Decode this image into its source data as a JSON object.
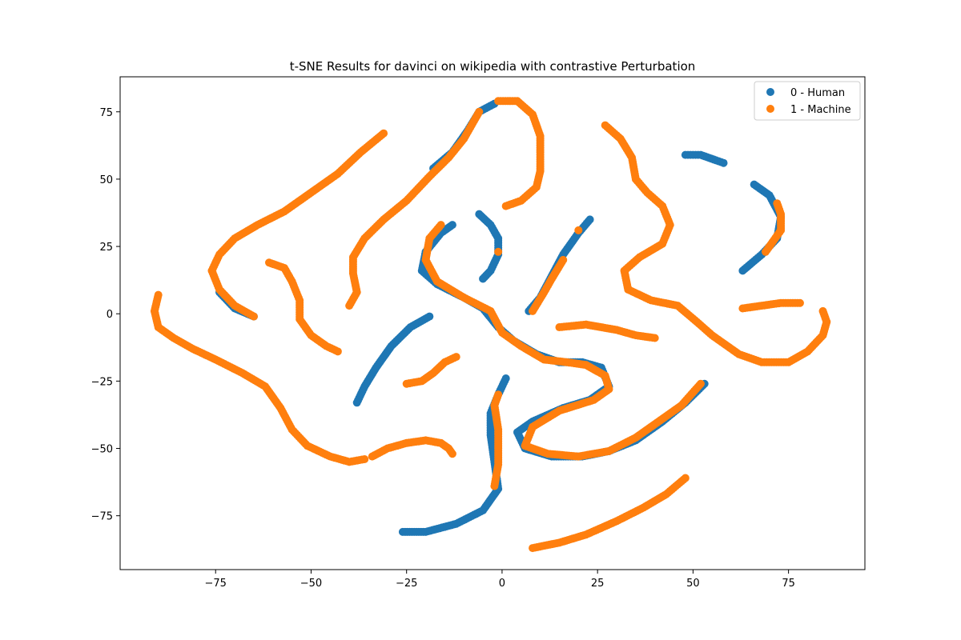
{
  "chart_data": {
    "type": "scatter",
    "title": "t-SNE Results for davinci on wikipedia with contrastive Perturbation",
    "xlabel": "",
    "ylabel": "",
    "xlim": [
      -100,
      95
    ],
    "ylim": [
      -95,
      88
    ],
    "xticks": [
      -75,
      -50,
      -25,
      0,
      25,
      50,
      75
    ],
    "yticks": [
      -75,
      -50,
      -25,
      0,
      25,
      50,
      75
    ],
    "xtick_labels": [
      "−75",
      "−50",
      "−25",
      "0",
      "25",
      "50",
      "75"
    ],
    "ytick_labels": [
      "−75",
      "−50",
      "−25",
      "0",
      "25",
      "50",
      "75"
    ],
    "grid": false,
    "legend_position": "top-right",
    "series": [
      {
        "name": "0 - Human",
        "color": "#1f77b4",
        "curves": [
          [
            [
              -65,
              -1
            ],
            [
              -70,
              2
            ],
            [
              -74,
              8
            ]
          ],
          [
            [
              48,
              59
            ],
            [
              52,
              59
            ],
            [
              56,
              57
            ],
            [
              58,
              56
            ]
          ],
          [
            [
              66,
              48
            ],
            [
              70,
              44
            ],
            [
              73,
              36
            ],
            [
              72,
              28
            ],
            [
              68,
              22
            ],
            [
              63,
              16
            ]
          ],
          [
            [
              -6,
              37
            ],
            [
              -3,
              33
            ],
            [
              -1,
              28
            ],
            [
              -1,
              22
            ],
            [
              -3,
              16
            ],
            [
              -5,
              13
            ]
          ],
          [
            [
              23,
              35
            ],
            [
              20,
              30
            ],
            [
              16,
              22
            ],
            [
              13,
              14
            ],
            [
              10,
              6
            ],
            [
              7,
              1
            ]
          ],
          [
            [
              -19,
              -1
            ],
            [
              -24,
              -5
            ],
            [
              -29,
              -12
            ],
            [
              -33,
              -20
            ],
            [
              -36,
              -27
            ],
            [
              -38,
              -33
            ]
          ],
          [
            [
              -26,
              -81
            ],
            [
              -20,
              -81
            ],
            [
              -12,
              -78
            ],
            [
              -5,
              -73
            ],
            [
              -1,
              -65
            ],
            [
              -2,
              -55
            ],
            [
              -3,
              -45
            ],
            [
              -3,
              -37
            ],
            [
              -1,
              -30
            ],
            [
              1,
              -24
            ]
          ],
          [
            [
              -13,
              33
            ],
            [
              -16,
              30
            ],
            [
              -20,
              23
            ],
            [
              -21,
              16
            ],
            [
              -17,
              11
            ],
            [
              -10,
              6
            ],
            [
              -5,
              2
            ],
            [
              -1,
              -5
            ],
            [
              3,
              -10
            ],
            [
              9,
              -15
            ],
            [
              15,
              -18
            ],
            [
              21,
              -18
            ],
            [
              26,
              -20
            ],
            [
              28,
              -27
            ],
            [
              23,
              -32
            ],
            [
              16,
              -35
            ],
            [
              8,
              -40
            ],
            [
              4,
              -44
            ],
            [
              6,
              -50
            ],
            [
              13,
              -53
            ],
            [
              21,
              -53
            ],
            [
              28,
              -51
            ],
            [
              35,
              -47
            ],
            [
              42,
              -40
            ],
            [
              48,
              -33
            ],
            [
              53,
              -26
            ]
          ],
          [
            [
              -18,
              54
            ],
            [
              -13,
              60
            ],
            [
              -9,
              68
            ],
            [
              -6,
              75
            ],
            [
              -2,
              78
            ]
          ]
        ]
      },
      {
        "name": "1 - Machine",
        "color": "#ff7f0e",
        "curves": [
          [
            [
              -65,
              -1
            ],
            [
              -70,
              3
            ],
            [
              -74,
              9
            ],
            [
              -76,
              16
            ],
            [
              -74,
              22
            ],
            [
              -70,
              28
            ],
            [
              -64,
              33
            ],
            [
              -57,
              38
            ],
            [
              -50,
              45
            ],
            [
              -43,
              52
            ],
            [
              -37,
              60
            ],
            [
              -31,
              67
            ]
          ],
          [
            [
              -90,
              7
            ],
            [
              -91,
              1
            ],
            [
              -90,
              -5
            ],
            [
              -86,
              -9
            ],
            [
              -81,
              -13
            ],
            [
              -75,
              -17
            ],
            [
              -68,
              -22
            ],
            [
              -62,
              -27
            ],
            [
              -58,
              -35
            ],
            [
              -55,
              -43
            ],
            [
              -51,
              -49
            ],
            [
              -45,
              -53
            ],
            [
              -40,
              -55
            ],
            [
              -36,
              -54
            ]
          ],
          [
            [
              -61,
              19
            ],
            [
              -57,
              17
            ],
            [
              -55,
              12
            ],
            [
              -53,
              5
            ],
            [
              -53,
              -2
            ],
            [
              -50,
              -8
            ],
            [
              -46,
              -12
            ],
            [
              -43,
              -14
            ]
          ],
          [
            [
              -40,
              3
            ],
            [
              -38,
              8
            ],
            [
              -39,
              15
            ],
            [
              -39,
              21
            ],
            [
              -36,
              28
            ],
            [
              -31,
              35
            ],
            [
              -25,
              42
            ],
            [
              -19,
              51
            ],
            [
              -14,
              58
            ],
            [
              -10,
              65
            ],
            [
              -8,
              70
            ],
            [
              -6,
              75
            ]
          ],
          [
            [
              -1,
              79
            ],
            [
              4,
              79
            ],
            [
              8,
              74
            ],
            [
              10,
              66
            ],
            [
              10,
              60
            ],
            [
              10,
              53
            ],
            [
              9,
              47
            ],
            [
              5,
              42
            ],
            [
              1,
              40
            ]
          ],
          [
            [
              -12,
              -16
            ],
            [
              -15,
              -18
            ],
            [
              -18,
              -22
            ],
            [
              -21,
              -25
            ],
            [
              -25,
              -26
            ]
          ],
          [
            [
              -34,
              -53
            ],
            [
              -30,
              -50
            ],
            [
              -25,
              -48
            ],
            [
              -20,
              -47
            ],
            [
              -16,
              -48
            ],
            [
              -14,
              -50
            ],
            [
              -13,
              -52
            ]
          ],
          [
            [
              8,
              -87
            ],
            [
              15,
              -85
            ],
            [
              22,
              -82
            ],
            [
              30,
              -77
            ],
            [
              37,
              -72
            ],
            [
              43,
              -67
            ],
            [
              48,
              -61
            ]
          ],
          [
            [
              27,
              70
            ],
            [
              31,
              65
            ],
            [
              34,
              58
            ],
            [
              35,
              50
            ],
            [
              38,
              45
            ],
            [
              42,
              40
            ],
            [
              44,
              33
            ],
            [
              42,
              26
            ],
            [
              36,
              21
            ],
            [
              32,
              16
            ],
            [
              33,
              9
            ],
            [
              39,
              5
            ],
            [
              46,
              3
            ],
            [
              51,
              -3
            ],
            [
              55,
              -8
            ],
            [
              58,
              -11
            ],
            [
              62,
              -15
            ],
            [
              68,
              -18
            ],
            [
              75,
              -18
            ],
            [
              80,
              -14
            ],
            [
              84,
              -8
            ],
            [
              85,
              -3
            ],
            [
              84,
              1
            ]
          ],
          [
            [
              15,
              -5
            ],
            [
              22,
              -4
            ],
            [
              30,
              -6
            ],
            [
              35,
              -8
            ],
            [
              40,
              -9
            ]
          ],
          [
            [
              63,
              2
            ],
            [
              68,
              3
            ],
            [
              73,
              4
            ],
            [
              78,
              4
            ]
          ],
          [
            [
              -16,
              33
            ],
            [
              -19,
              28
            ],
            [
              -20,
              20
            ],
            [
              -17,
              12
            ],
            [
              -10,
              6
            ],
            [
              -3,
              1
            ],
            [
              0,
              -7
            ],
            [
              5,
              -12
            ],
            [
              11,
              -17
            ],
            [
              17,
              -18
            ],
            [
              22,
              -19
            ],
            [
              27,
              -23
            ],
            [
              28,
              -28
            ],
            [
              24,
              -32
            ],
            [
              15,
              -36
            ],
            [
              8,
              -42
            ],
            [
              6,
              -49
            ],
            [
              12,
              -52
            ],
            [
              20,
              -53
            ],
            [
              28,
              -51
            ],
            [
              35,
              -46
            ],
            [
              41,
              -40
            ],
            [
              47,
              -34
            ],
            [
              52,
              -26
            ]
          ],
          [
            [
              -1,
              -30
            ],
            [
              -2,
              -34
            ],
            [
              -1,
              -43
            ],
            [
              -1,
              -56
            ],
            [
              -2,
              -64
            ]
          ],
          [
            [
              -1,
              23
            ],
            [
              20,
              31
            ],
            [
              16,
              20
            ],
            [
              13,
              13
            ],
            [
              11,
              8
            ],
            [
              8,
              1
            ],
            [
              72,
              41
            ],
            [
              73,
              37
            ],
            [
              73,
              31
            ],
            [
              69,
              23
            ]
          ]
        ]
      }
    ]
  }
}
